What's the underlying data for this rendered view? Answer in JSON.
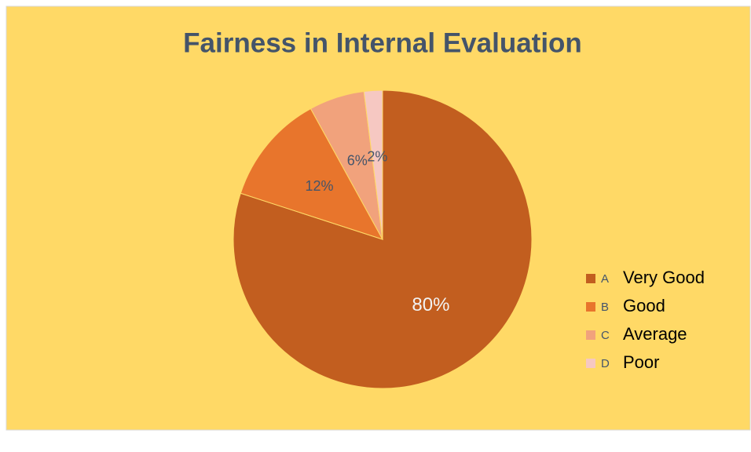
{
  "chart_data": {
    "type": "pie",
    "title": "Fairness in Internal Evaluation",
    "categories": [
      "A",
      "B",
      "C",
      "D"
    ],
    "labels": [
      "Very Good",
      "Good",
      "Average",
      "Poor"
    ],
    "values": [
      80,
      12,
      6,
      2
    ],
    "value_labels": [
      "80%",
      "12%",
      "6%",
      "2%"
    ],
    "colors": [
      "#c25e1f",
      "#e8752c",
      "#f1a27c",
      "#f6c8c2"
    ],
    "legend": "right"
  }
}
